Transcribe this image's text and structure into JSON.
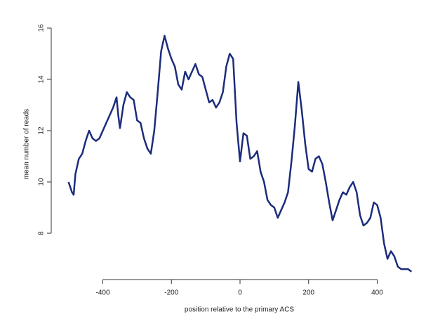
{
  "chart_data": {
    "type": "line",
    "xlabel": "position relative to the primary ACS",
    "ylabel": "mean number of reads",
    "x": [
      -500,
      -490,
      -485,
      -480,
      -470,
      -460,
      -450,
      -440,
      -430,
      -420,
      -410,
      -400,
      -390,
      -380,
      -370,
      -360,
      -355,
      -350,
      -340,
      -330,
      -320,
      -310,
      -300,
      -290,
      -280,
      -270,
      -260,
      -250,
      -240,
      -230,
      -220,
      -210,
      -200,
      -190,
      -180,
      -170,
      -160,
      -150,
      -140,
      -130,
      -120,
      -110,
      -100,
      -90,
      -80,
      -70,
      -60,
      -50,
      -40,
      -30,
      -20,
      -10,
      0,
      10,
      20,
      30,
      40,
      50,
      60,
      70,
      80,
      90,
      100,
      110,
      120,
      130,
      140,
      150,
      160,
      170,
      180,
      190,
      200,
      210,
      220,
      230,
      240,
      250,
      260,
      270,
      280,
      290,
      300,
      310,
      320,
      330,
      340,
      350,
      360,
      370,
      380,
      390,
      400,
      410,
      420,
      430,
      440,
      450,
      460,
      470,
      480,
      490,
      500
    ],
    "series": [
      {
        "color": "#1c2c7c",
        "values": [
          10.0,
          9.6,
          9.5,
          10.3,
          10.9,
          11.1,
          11.6,
          12.0,
          11.7,
          11.6,
          11.7,
          12.0,
          12.3,
          12.6,
          12.9,
          13.3,
          12.6,
          12.1,
          13.0,
          13.5,
          13.3,
          13.2,
          12.4,
          12.3,
          11.7,
          11.3,
          11.1,
          12.0,
          13.5,
          15.1,
          15.7,
          15.2,
          14.8,
          14.5,
          13.8,
          13.6,
          14.3,
          14.0,
          14.3,
          14.6,
          14.2,
          14.1,
          13.6,
          13.1,
          13.2,
          12.9,
          13.1,
          13.5,
          14.5,
          15.0,
          14.8,
          12.3,
          10.8,
          11.9,
          11.8,
          10.9,
          11.0,
          11.2,
          10.4,
          10.0,
          9.3,
          9.1,
          9.0,
          8.6,
          8.9,
          9.2,
          9.6,
          10.8,
          12.2,
          13.9,
          12.8,
          11.5,
          10.5,
          10.4,
          10.9,
          11.0,
          10.7,
          10.0,
          9.2,
          8.5,
          8.9,
          9.3,
          9.6,
          9.5,
          9.8,
          10.0,
          9.6,
          8.7,
          8.3,
          8.4,
          8.6,
          9.2,
          9.1,
          8.6,
          7.6,
          7.0,
          7.3,
          7.1,
          6.7,
          6.6,
          6.6,
          6.6,
          6.5
        ]
      }
    ],
    "xlim": [
      -540,
      540
    ],
    "ylim": [
      6.13,
      16.12
    ],
    "xticks": [
      -400,
      -200,
      0,
      200,
      400
    ],
    "yticks": [
      8,
      10,
      12,
      14,
      16
    ]
  }
}
